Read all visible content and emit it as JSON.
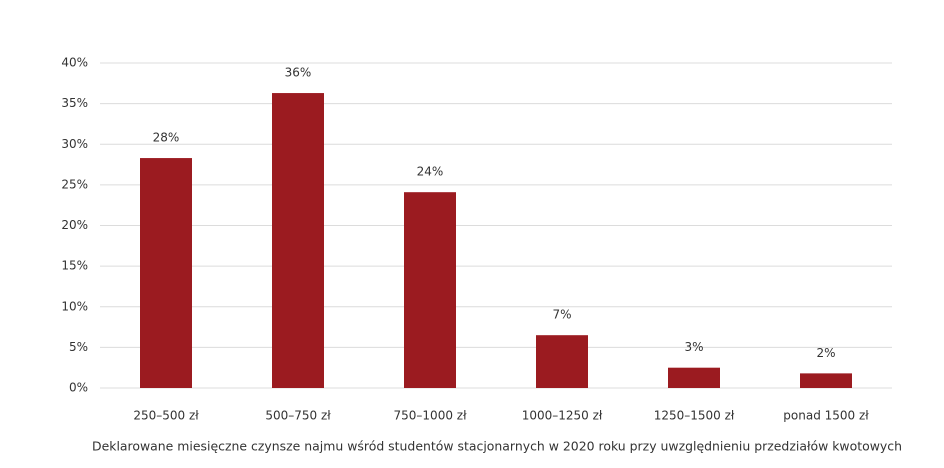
{
  "chart_data": {
    "type": "bar",
    "title": "Deklarowane miesięczne czynsze najmu wśród studentów stacjonarnych w 2020 roku przy uwzględnieniu przedziałów kwotowych",
    "categories": [
      "250–500 zł",
      "500–750 zł",
      "750–1000 zł",
      "1000–1250 zł",
      "1250–1500 zł",
      "ponad 1500 zł"
    ],
    "values": [
      28.3,
      36.3,
      24.1,
      6.5,
      2.5,
      1.8
    ],
    "value_labels": [
      "28%",
      "36%",
      "24%",
      "7%",
      "3%",
      "2%"
    ],
    "color": "#9b1b20",
    "ylim": [
      0,
      40
    ],
    "yticks": [
      {
        "value": 0,
        "label": "0%"
      },
      {
        "value": 5,
        "label": "5%"
      },
      {
        "value": 10,
        "label": "10%"
      },
      {
        "value": 15,
        "label": "15%"
      },
      {
        "value": 20,
        "label": "20%"
      },
      {
        "value": 25,
        "label": "25%"
      },
      {
        "value": 30,
        "label": "30%"
      },
      {
        "value": 35,
        "label": "35%"
      },
      {
        "value": 40,
        "label": "40%"
      }
    ],
    "grid": true
  }
}
